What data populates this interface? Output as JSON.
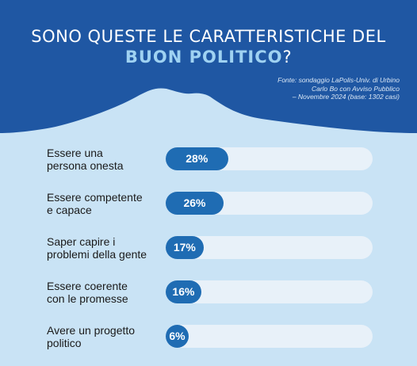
{
  "chart_data": {
    "type": "bar",
    "orientation": "horizontal",
    "title_line1": "SONO QUESTE LE CARATTERISTICHE DEL",
    "title_highlight": "BUON POLITICO",
    "title_end": "?",
    "source_lines": [
      "Fonte: sondaggio LaPolis-Univ. di Urbino",
      "Carlo Bo con Avviso Pubblico",
      "– Novembre 2024 (base: 1302 casi)"
    ],
    "categories": [
      [
        "Essere una",
        "persona onesta"
      ],
      [
        "Essere competente",
        "e capace"
      ],
      [
        "Saper capire i",
        "problemi della gente"
      ],
      [
        "Essere coerente",
        "con le promesse"
      ],
      [
        "Avere un progetto",
        "politico"
      ]
    ],
    "values": [
      28,
      26,
      17,
      16,
      6
    ],
    "value_labels": [
      "28%",
      "26%",
      "17%",
      "16%",
      "6%"
    ],
    "unit": "%",
    "xlim": [
      0,
      93
    ]
  },
  "colors": {
    "header": "#1f57a3",
    "background": "#c9e3f5",
    "bar": "#1f6cb3",
    "track": "#e8f1f9",
    "highlight": "#9fd2f2"
  }
}
